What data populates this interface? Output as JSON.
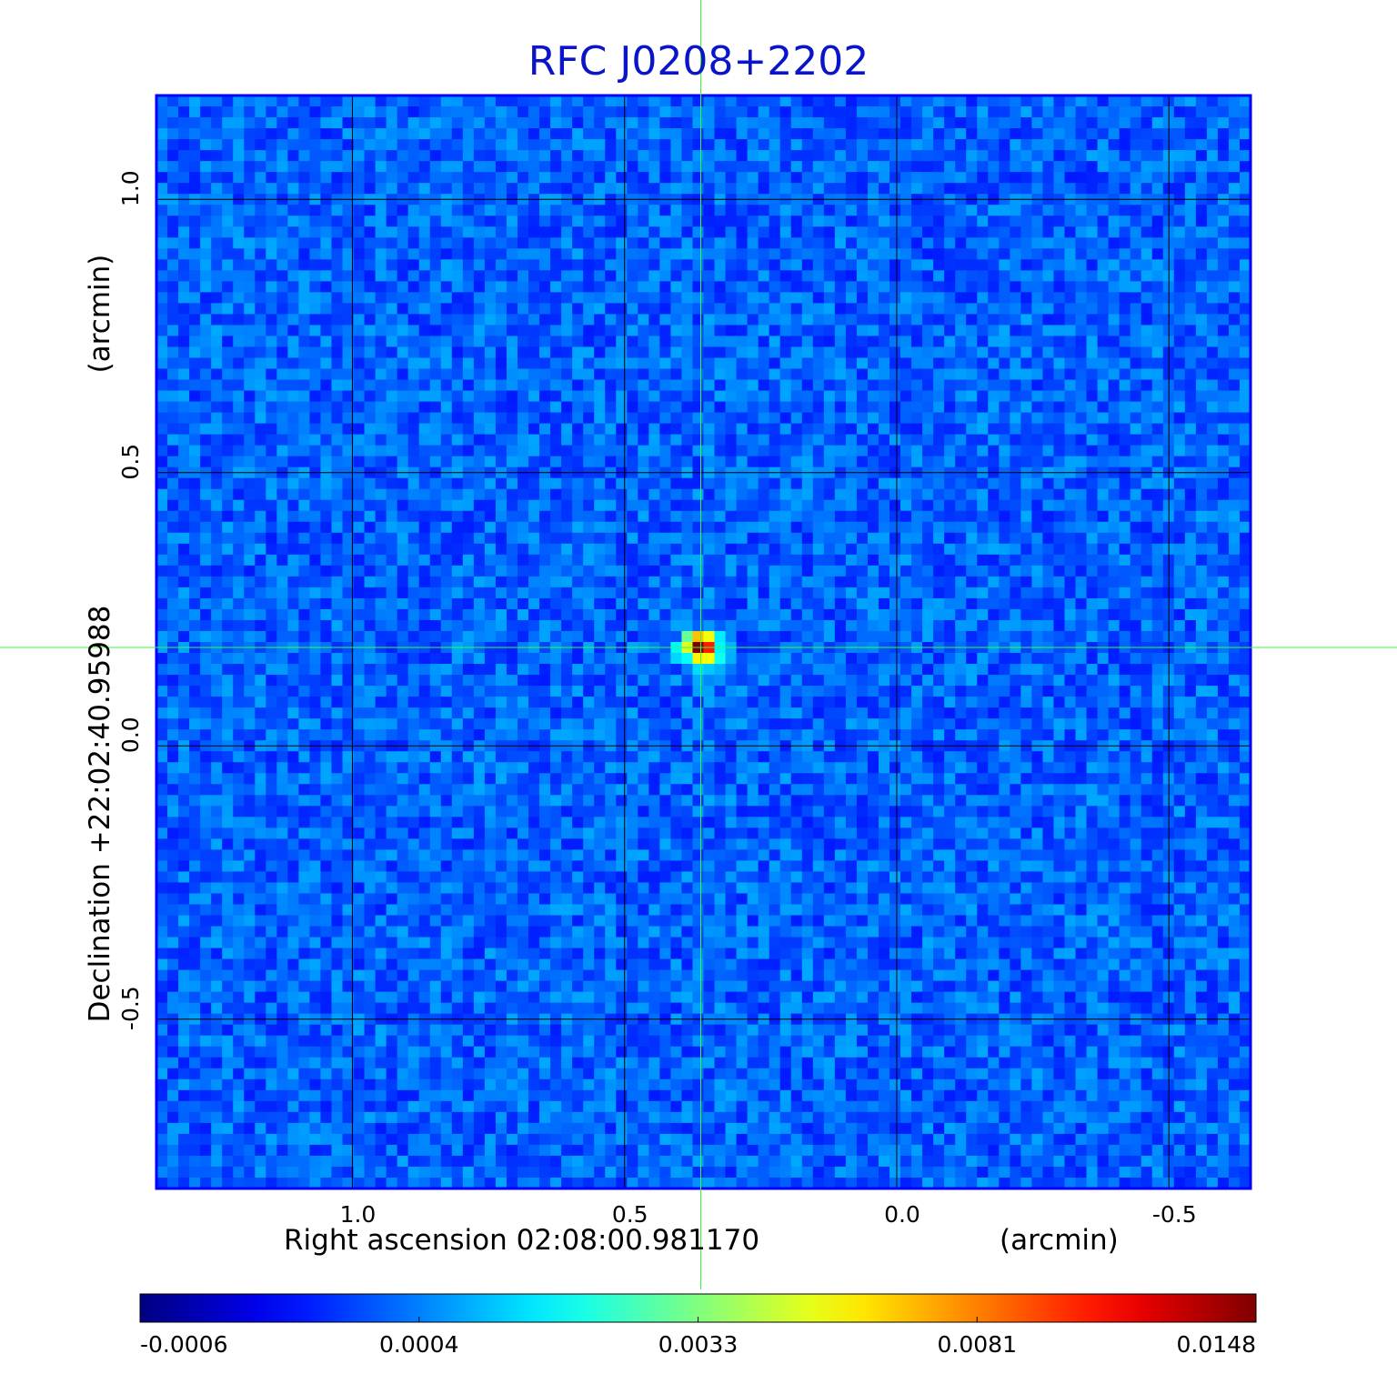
{
  "title": "RFC J0208+2202",
  "xlabel": "Right ascension  02:08:00.981170",
  "xunit": "(arcmin)",
  "ylabel": "Declination  +22:02:40.95988",
  "yunit": "(arcmin)",
  "colorbar_ticks": [
    "-0.0006",
    "0.0004",
    "0.0033",
    "0.0081",
    "0.0148"
  ],
  "colors": {
    "title": "#0a14c8",
    "frame": "#0000ff",
    "crosshair": "#33ff33",
    "grid": "#000000",
    "colormap": "jet"
  },
  "chart_data": {
    "type": "heatmap",
    "title": "RFC J0208+2202",
    "xlabel": "Right ascension  02:08:00.981170 (arcmin)",
    "ylabel": "Declination  +22:02:40.95988 (arcmin)",
    "x_ticks": [
      1.0,
      0.5,
      0.0,
      -0.5
    ],
    "y_ticks": [
      1.0,
      0.5,
      0.0,
      -0.5
    ],
    "xlim": [
      1.36,
      -0.65
    ],
    "ylim": [
      -0.81,
      1.19
    ],
    "grid": true,
    "crosshair": {
      "x": 0.36,
      "y": 0.18
    },
    "peak": {
      "x": 0.36,
      "y": 0.18,
      "value": 0.0148
    },
    "colorbar": {
      "min": -0.0006,
      "max": 0.0148,
      "ticks": [
        -0.0006,
        0.0004,
        0.0033,
        0.0081,
        0.0148
      ],
      "colormap": "jet"
    }
  }
}
